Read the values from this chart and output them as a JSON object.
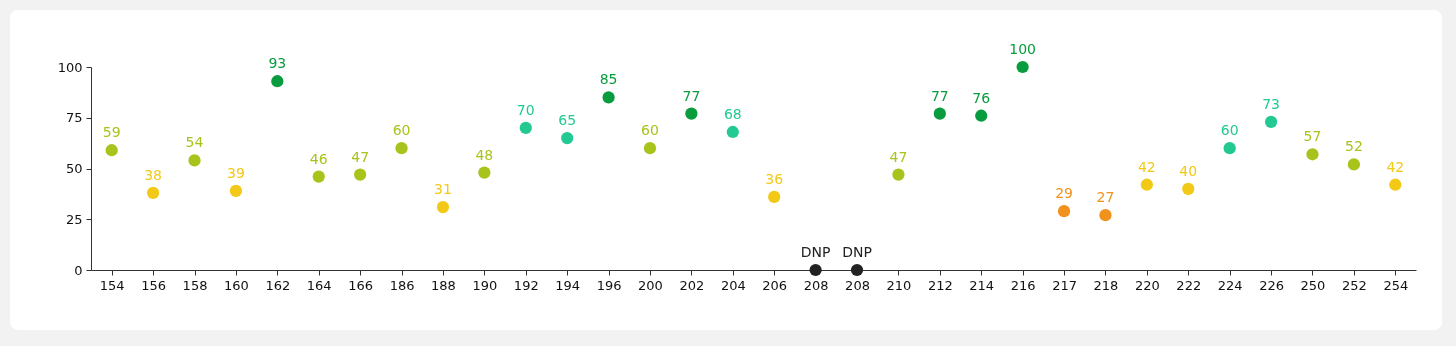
{
  "chart_data": {
    "type": "scatter",
    "categories": [
      "154",
      "156",
      "158",
      "160",
      "162",
      "164",
      "166",
      "186",
      "188",
      "190",
      "192",
      "194",
      "196",
      "200",
      "202",
      "204",
      "206",
      "208",
      "208",
      "210",
      "212",
      "214",
      "216",
      "217",
      "218",
      "220",
      "222",
      "224",
      "226",
      "250",
      "252",
      "254"
    ],
    "values": [
      59,
      38,
      54,
      39,
      93,
      46,
      47,
      60,
      31,
      48,
      70,
      65,
      85,
      60,
      77,
      68,
      36,
      0,
      0,
      47,
      77,
      76,
      100,
      29,
      27,
      42,
      40,
      60,
      73,
      57,
      52,
      42
    ],
    "value_labels": [
      "59",
      "38",
      "54",
      "39",
      "93",
      "46",
      "47",
      "60",
      "31",
      "48",
      "70",
      "65",
      "85",
      "60",
      "77",
      "68",
      "36",
      "DNP",
      "DNP",
      "47",
      "77",
      "76",
      "100",
      "29",
      "27",
      "42",
      "40",
      "60",
      "73",
      "57",
      "52",
      "42"
    ],
    "colors": [
      "#a8c41c",
      "#f2c916",
      "#a8c41c",
      "#f2c916",
      "#089c3e",
      "#a8c41c",
      "#a8c41c",
      "#a8c41c",
      "#f2c916",
      "#a8c41c",
      "#22c993",
      "#22c993",
      "#089c3e",
      "#a8c41c",
      "#089c3e",
      "#22c993",
      "#f2c916",
      "#222222",
      "#222222",
      "#a8c41c",
      "#089c3e",
      "#089c3e",
      "#089c3e",
      "#f0921c",
      "#f0921c",
      "#f2c916",
      "#f2c916",
      "#22c993",
      "#22c993",
      "#a8c41c",
      "#a8c41c",
      "#f2c916"
    ],
    "ylim": [
      0,
      100
    ],
    "yticks": [
      0,
      25,
      50,
      75,
      100
    ],
    "grid": false,
    "marker": "circle"
  }
}
